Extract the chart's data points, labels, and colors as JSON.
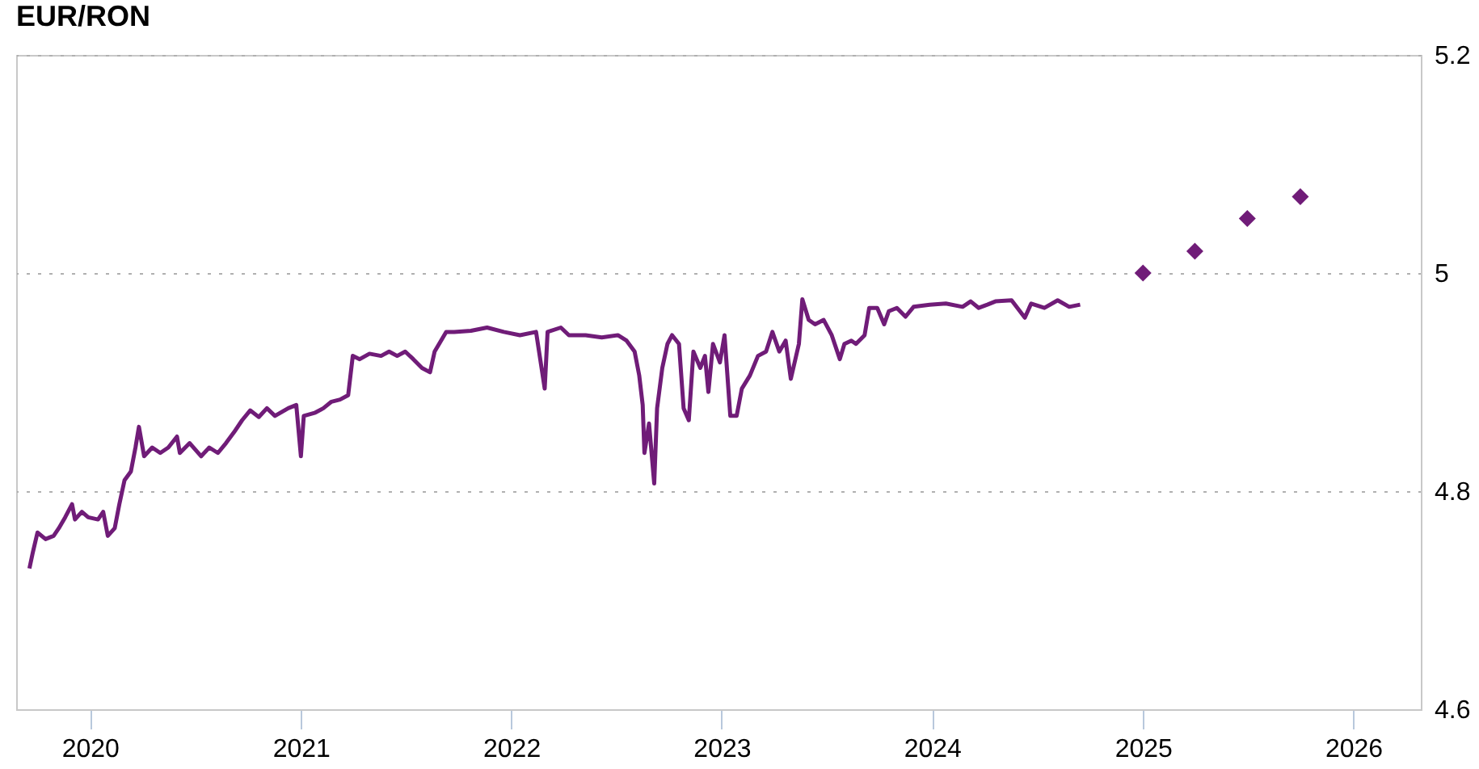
{
  "chart_data": {
    "type": "line",
    "title": "EUR/RON",
    "xlim": [
      "2019-08-26",
      "2026-04-28"
    ],
    "xticks": [
      {
        "value": "2020-01-01",
        "label": "2020"
      },
      {
        "value": "2021-01-01",
        "label": "2021"
      },
      {
        "value": "2022-01-01",
        "label": "2022"
      },
      {
        "value": "2023-01-01",
        "label": "2023"
      },
      {
        "value": "2024-01-01",
        "label": "2024"
      },
      {
        "value": "2025-01-01",
        "label": "2025"
      },
      {
        "value": "2026-01-01",
        "label": "2026"
      }
    ],
    "ylim": [
      4.6,
      5.2
    ],
    "yticks": [
      {
        "value": 4.6,
        "label": "4.6"
      },
      {
        "value": 4.8,
        "label": "4.8"
      },
      {
        "value": 5.0,
        "label": "5"
      },
      {
        "value": 5.2,
        "label": "5.2"
      }
    ],
    "grid": "y",
    "series": [
      {
        "color": "#701c78",
        "line_style": "solid",
        "marker": "none",
        "x": [
          "2019-09-18",
          "2019-09-24",
          "2019-10-02",
          "2019-10-16",
          "2019-10-30",
          "2019-11-08",
          "2019-11-19",
          "2019-12-01",
          "2019-12-06",
          "2019-12-18",
          "2019-12-29",
          "2020-01-15",
          "2020-01-24",
          "2020-02-01",
          "2020-02-13",
          "2020-02-21",
          "2020-03-01",
          "2020-03-12",
          "2020-03-20",
          "2020-03-26",
          "2020-04-04",
          "2020-04-18",
          "2020-05-02",
          "2020-05-16",
          "2020-05-31",
          "2020-06-05",
          "2020-06-22",
          "2020-07-12",
          "2020-07-26",
          "2020-08-10",
          "2020-08-24",
          "2020-09-07",
          "2020-09-21",
          "2020-10-05",
          "2020-10-20",
          "2020-11-03",
          "2020-11-17",
          "2020-12-10",
          "2020-12-24",
          "2021-01-01",
          "2021-01-06",
          "2021-01-26",
          "2021-02-09",
          "2021-02-23",
          "2021-03-10",
          "2021-03-24",
          "2021-04-01",
          "2021-04-13",
          "2021-04-30",
          "2021-05-20",
          "2021-06-03",
          "2021-06-17",
          "2021-07-01",
          "2021-07-15",
          "2021-07-30",
          "2021-08-13",
          "2021-08-21",
          "2021-09-10",
          "2021-09-24",
          "2021-10-23",
          "2021-11-20",
          "2021-12-19",
          "2022-01-16",
          "2022-02-13",
          "2022-02-28",
          "2022-03-05",
          "2022-03-28",
          "2022-04-11",
          "2022-05-10",
          "2022-06-07",
          "2022-07-05",
          "2022-07-20",
          "2022-08-03",
          "2022-08-11",
          "2022-08-17",
          "2022-08-20",
          "2022-08-28",
          "2022-09-06",
          "2022-09-11",
          "2022-09-20",
          "2022-09-29",
          "2022-10-07",
          "2022-10-19",
          "2022-10-27",
          "2022-11-05",
          "2022-11-13",
          "2022-11-25",
          "2022-12-03",
          "2022-12-09",
          "2022-12-17",
          "2022-12-29",
          "2023-01-06",
          "2023-01-16",
          "2023-01-27",
          "2023-02-05",
          "2023-02-19",
          "2023-03-05",
          "2023-03-19",
          "2023-03-30",
          "2023-04-11",
          "2023-04-22",
          "2023-05-01",
          "2023-05-15",
          "2023-05-21",
          "2023-06-01",
          "2023-06-12",
          "2023-06-27",
          "2023-07-11",
          "2023-07-25",
          "2023-08-02",
          "2023-08-14",
          "2023-08-22",
          "2023-09-06",
          "2023-09-14",
          "2023-09-28",
          "2023-10-10",
          "2023-10-18",
          "2023-11-01",
          "2023-11-16",
          "2023-11-30",
          "2023-12-28",
          "2024-01-25",
          "2024-02-23",
          "2024-03-08",
          "2024-03-22",
          "2024-04-06",
          "2024-04-20",
          "2024-05-18",
          "2024-06-10",
          "2024-06-21",
          "2024-07-14",
          "2024-08-06",
          "2024-08-26",
          "2024-09-14"
        ],
        "values": [
          4.729,
          4.744,
          4.762,
          4.756,
          4.759,
          4.766,
          4.776,
          4.788,
          4.774,
          4.781,
          4.776,
          4.774,
          4.781,
          4.759,
          4.766,
          4.788,
          4.81,
          4.818,
          4.84,
          4.859,
          4.832,
          4.84,
          4.835,
          4.84,
          4.85,
          4.835,
          4.844,
          4.832,
          4.84,
          4.835,
          4.844,
          4.854,
          4.865,
          4.874,
          4.868,
          4.876,
          4.869,
          4.876,
          4.879,
          4.832,
          4.869,
          4.872,
          4.876,
          4.882,
          4.884,
          4.888,
          4.924,
          4.921,
          4.926,
          4.924,
          4.928,
          4.924,
          4.928,
          4.921,
          4.913,
          4.909,
          4.928,
          4.946,
          4.946,
          4.947,
          4.95,
          4.946,
          4.943,
          4.946,
          4.894,
          4.946,
          4.95,
          4.943,
          4.943,
          4.941,
          4.943,
          4.938,
          4.928,
          4.906,
          4.879,
          4.835,
          4.862,
          4.807,
          4.876,
          4.913,
          4.935,
          4.943,
          4.935,
          4.876,
          4.865,
          4.928,
          4.913,
          4.924,
          4.891,
          4.935,
          4.918,
          4.943,
          4.869,
          4.869,
          4.894,
          4.906,
          4.924,
          4.928,
          4.946,
          4.928,
          4.938,
          4.903,
          4.935,
          4.976,
          4.957,
          4.953,
          4.957,
          4.943,
          4.921,
          4.935,
          4.938,
          4.935,
          4.943,
          4.968,
          4.968,
          4.953,
          4.965,
          4.968,
          4.96,
          4.969,
          4.971,
          4.972,
          4.969,
          4.974,
          4.968,
          4.971,
          4.974,
          4.975,
          4.959,
          4.972,
          4.968,
          4.975,
          4.969,
          4.971
        ]
      },
      {
        "type": "scatter",
        "color": "#701c78",
        "marker": "diamond",
        "x": [
          "2025-01-01",
          "2025-04-01",
          "2025-07-01",
          "2025-10-01"
        ],
        "values": [
          5.0,
          5.02,
          5.05,
          5.07
        ]
      }
    ]
  }
}
